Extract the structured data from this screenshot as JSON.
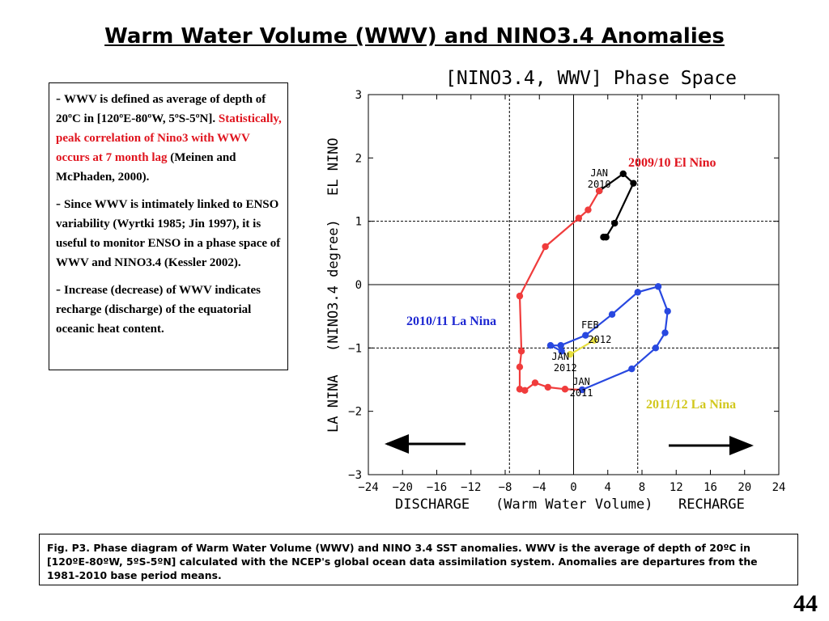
{
  "slide": {
    "title": "Warm Water Volume (WWV) and NINO3.4 Anomalies",
    "page_number": "44"
  },
  "textbox": {
    "p1_dash": "-",
    "p1_a": "WWV is defined as average of depth of 20ºC in [120ºE-80ºW, 5ºS-5ºN].",
    "p1_red": "Statistically, peak correlation of Nino3 with WWV occurs at 7 month lag",
    "p1_b": "(Meinen and McPhaden, 2000).",
    "p2_dash": "-",
    "p2": "Since WWV is intimately linked to ENSO variability (Wyrtki 1985; Jin 1997), it is useful to monitor ENSO in a phase space of WWV and NINO3.4 (Kessler 2002).",
    "p3_dash": "-",
    "p3": "Increase (decrease) of WWV indicates recharge (discharge) of the equatorial oceanic heat content."
  },
  "caption": {
    "text": "Fig. P3. Phase diagram of Warm Water Volume (WWV) and NINO 3.4 SST anomalies. WWV is the average of depth of 20ºC in [120ºE-80ºW, 5ºS-5ºN] calculated with the NCEP's global ocean data assimilation system. Anomalies are departures from the 1981-2010 base period means."
  },
  "chart_data": {
    "type": "line",
    "title": "[NINO3.4, WWV] Phase Space",
    "xlabel": "(Warm Water Volume)",
    "xlabel_left": "DISCHARGE",
    "xlabel_right": "RECHARGE",
    "ylabel": "(NINO3.4 degree)",
    "ylabel_top": "EL NINO",
    "ylabel_bottom": "LA NINA",
    "xlim": [
      -24,
      24
    ],
    "ylim": [
      -3,
      3
    ],
    "xticks": [
      -24,
      -20,
      -16,
      -12,
      -8,
      -4,
      0,
      4,
      8,
      12,
      16,
      20,
      24
    ],
    "yticks": [
      -3,
      -2,
      -1,
      0,
      1,
      2,
      3
    ],
    "dashed_reference_lines": {
      "x": [
        -7.5,
        7.5
      ],
      "y": [
        -1,
        1
      ]
    },
    "solid_reference_lines": {
      "x": [
        0
      ],
      "y": [
        0
      ]
    },
    "series": [
      {
        "name": "2009/10 El Nino",
        "color": "#000000",
        "x": [
          3.5,
          3.8,
          4.8,
          7.0,
          5.8,
          3.0
        ],
        "y": [
          0.75,
          0.75,
          0.97,
          1.6,
          1.75,
          1.48
        ]
      },
      {
        "name": "",
        "color": "#f03c3c",
        "x": [
          3.0,
          1.7,
          0.6,
          -3.3,
          -6.3,
          -6.1,
          -6.3,
          -6.3,
          -5.7,
          -4.5,
          -3.0,
          -1.0,
          1.0
        ],
        "y": [
          1.48,
          1.18,
          1.05,
          0.6,
          -0.18,
          -1.05,
          -1.3,
          -1.65,
          -1.67,
          -1.55,
          -1.62,
          -1.65,
          -1.66
        ]
      },
      {
        "name": "2010/11 La Nina",
        "color": "#2848e0",
        "x": [
          1.0,
          6.8,
          9.6,
          10.7,
          11.0,
          9.9,
          7.5,
          4.5,
          1.4,
          -1.5,
          -2.7,
          -1.4
        ],
        "y": [
          -1.66,
          -1.33,
          -1.0,
          -0.76,
          -0.42,
          -0.03,
          -0.12,
          -0.47,
          -0.8,
          -0.96,
          -0.96,
          -1.05
        ]
      },
      {
        "name": "2011/12 La Nina",
        "color": "#e8e040",
        "x": [
          -0.4,
          2.4
        ],
        "y": [
          -1.1,
          -0.88
        ]
      }
    ],
    "point_labels": [
      {
        "text": "JAN",
        "x": 3.0,
        "y": 1.48
      },
      {
        "text": "2010",
        "x": 3.0,
        "y": 1.48
      },
      {
        "text": "JAN",
        "x": 1.0,
        "y": -1.66
      },
      {
        "text": "2011",
        "x": 1.0,
        "y": -1.66
      },
      {
        "text": "FEB",
        "x": 2.4,
        "y": -0.88
      },
      {
        "text": "2012",
        "x": 2.4,
        "y": -0.88
      },
      {
        "text": "JAN",
        "x": -0.4,
        "y": -1.1
      },
      {
        "text": "2012",
        "x": -0.4,
        "y": -1.1
      }
    ],
    "annotations": [
      {
        "text": "2009/10 El Nino",
        "color": "#e0141e"
      },
      {
        "text": "2010/11 La Nina",
        "color": "#1e28d2"
      },
      {
        "text": "2011/12 La Nina",
        "color": "#d2c81e"
      }
    ],
    "grid": false,
    "legend": "none"
  }
}
